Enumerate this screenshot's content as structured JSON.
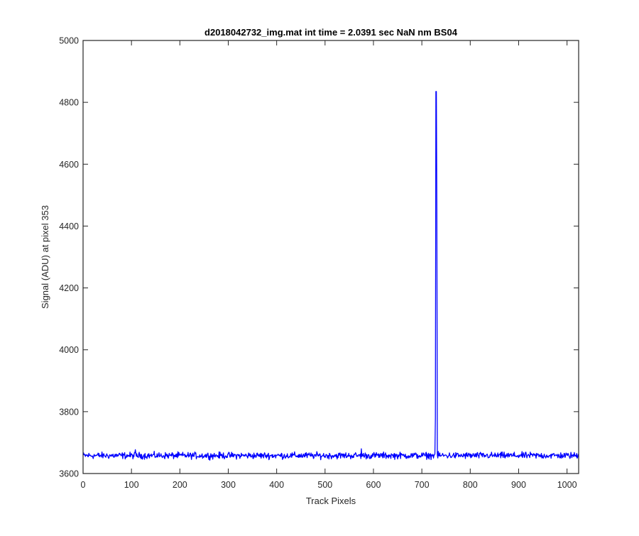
{
  "colors": {
    "line": "#0000ff",
    "axis": "#262626",
    "background": "#ffffff"
  },
  "chart_data": {
    "type": "line",
    "title": "d2018042732_img.mat int time = 2.0391 sec  NaN nm BS04",
    "xlabel": "Track Pixels",
    "ylabel": "Signal (ADU) at pixel 353",
    "xlim": [
      0,
      1024
    ],
    "ylim": [
      3600,
      5000
    ],
    "xticks": [
      0,
      100,
      200,
      300,
      400,
      500,
      600,
      700,
      800,
      900,
      1000
    ],
    "yticks": [
      3600,
      3800,
      4000,
      4200,
      4400,
      4600,
      4800,
      5000
    ],
    "grid": false,
    "legend": "none",
    "series": [
      {
        "baseline": 3658,
        "noise_amplitude": 8,
        "x_range": [
          0,
          1024
        ],
        "features": [
          {
            "x": 108,
            "y": 3677
          },
          {
            "x": 575,
            "y": 3680
          },
          {
            "x": 728,
            "y": 3780
          },
          {
            "x": 729,
            "y": 4835
          },
          {
            "x": 730,
            "y": 4835
          },
          {
            "x": 731,
            "y": 4455
          },
          {
            "x": 732,
            "y": 3660
          }
        ]
      }
    ]
  }
}
